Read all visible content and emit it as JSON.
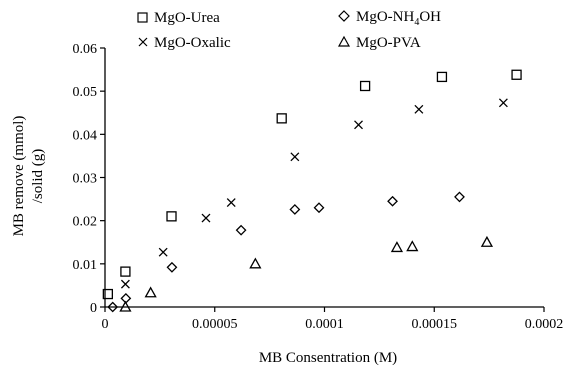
{
  "chart_data": {
    "type": "scatter",
    "title": "",
    "xlabel": "MB Consentration (M)",
    "ylabel_lines": [
      "MB remove (mmol)",
      "/solid (g)"
    ],
    "xlim": [
      0,
      0.0002
    ],
    "ylim": [
      0,
      0.06
    ],
    "x_ticks": [
      {
        "value": 0,
        "label": "0"
      },
      {
        "value": 5e-05,
        "label": "0.00005"
      },
      {
        "value": 0.0001,
        "label": "0.0001"
      },
      {
        "value": 0.00015,
        "label": "0.00015"
      },
      {
        "value": 0.0002,
        "label": "0.0002"
      }
    ],
    "y_ticks": [
      {
        "value": 0,
        "label": "0"
      },
      {
        "value": 0.01,
        "label": "0.01"
      },
      {
        "value": 0.02,
        "label": "0.02"
      },
      {
        "value": 0.03,
        "label": "0.03"
      },
      {
        "value": 0.04,
        "label": "0.04"
      },
      {
        "value": 0.05,
        "label": "0.05"
      },
      {
        "value": 0.06,
        "label": "0.06"
      }
    ],
    "grid": false,
    "legend_position": "top",
    "series": [
      {
        "name": "MgO-Urea",
        "marker": "square",
        "points": [
          {
            "x": 1.3e-06,
            "y": 0.003
          },
          {
            "x": 9.3e-06,
            "y": 0.0082
          },
          {
            "x": 3.03e-05,
            "y": 0.021
          },
          {
            "x": 8.05e-05,
            "y": 0.0437
          },
          {
            "x": 0.0001185,
            "y": 0.0512
          },
          {
            "x": 0.0001535,
            "y": 0.0533
          },
          {
            "x": 0.0001875,
            "y": 0.0538
          }
        ]
      },
      {
        "name": "MgO-NH",
        "name_subscript": "4",
        "name_suffix": "OH",
        "marker": "diamond",
        "points": [
          {
            "x": 3.5e-06,
            "y": 0.0
          },
          {
            "x": 9.5e-06,
            "y": 0.002
          },
          {
            "x": 3.05e-05,
            "y": 0.0092
          },
          {
            "x": 6.2e-05,
            "y": 0.0178
          },
          {
            "x": 8.65e-05,
            "y": 0.0226
          },
          {
            "x": 9.75e-05,
            "y": 0.023
          },
          {
            "x": 0.000131,
            "y": 0.0245
          },
          {
            "x": 0.0001615,
            "y": 0.0255
          }
        ]
      },
      {
        "name": "MgO-Oxalic",
        "marker": "cross",
        "points": [
          {
            "x": 9.3e-06,
            "y": 0.0053
          },
          {
            "x": 2.65e-05,
            "y": 0.0127
          },
          {
            "x": 4.6e-05,
            "y": 0.0206
          },
          {
            "x": 5.75e-05,
            "y": 0.0242
          },
          {
            "x": 8.65e-05,
            "y": 0.0348
          },
          {
            "x": 0.0001155,
            "y": 0.0422
          },
          {
            "x": 0.000143,
            "y": 0.0458
          },
          {
            "x": 0.0001815,
            "y": 0.0473
          }
        ]
      },
      {
        "name": "MgO-PVA",
        "marker": "triangle",
        "points": [
          {
            "x": 9.3e-06,
            "y": 0.0
          },
          {
            "x": 2.08e-05,
            "y": 0.0033
          },
          {
            "x": 6.85e-05,
            "y": 0.01
          },
          {
            "x": 0.000133,
            "y": 0.0138
          },
          {
            "x": 0.00014,
            "y": 0.014
          },
          {
            "x": 0.000174,
            "y": 0.015
          }
        ]
      }
    ],
    "colors": {
      "axis": "#000000",
      "marker": "#000000",
      "background": "#ffffff"
    }
  }
}
